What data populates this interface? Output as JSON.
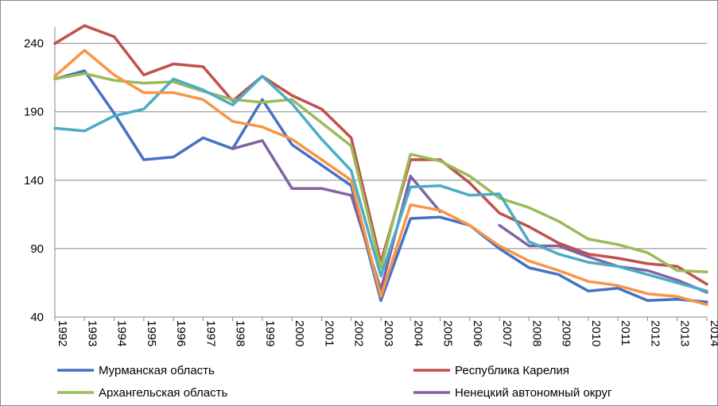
{
  "chart_data": {
    "type": "line",
    "title": "",
    "xlabel": "",
    "ylabel": "",
    "x": [
      "1992",
      "1993",
      "1994",
      "1995",
      "1996",
      "1997",
      "1998",
      "1999",
      "2000",
      "2001",
      "2002",
      "2003",
      "2004",
      "2005",
      "2006",
      "2007",
      "2008",
      "2009",
      "2010",
      "2011",
      "2012",
      "2013",
      "2014"
    ],
    "ylim": [
      40,
      250
    ],
    "yticks": [
      40,
      90,
      140,
      190,
      240
    ],
    "grid": true,
    "legend_position": "bottom",
    "series": [
      {
        "name": "Мурманская область",
        "color": "#4472c4",
        "values": [
          214,
          220,
          189,
          155,
          157,
          171,
          163,
          199,
          166,
          151,
          136,
          52,
          112,
          113,
          107,
          90,
          76,
          71,
          59,
          61,
          52,
          53,
          51
        ]
      },
      {
        "name": "Республика Карелия",
        "color": "#c0504d",
        "values": [
          240,
          253,
          245,
          217,
          225,
          223,
          198,
          216,
          202,
          192,
          171,
          80,
          155,
          155,
          138,
          116,
          106,
          94,
          86,
          83,
          79,
          77,
          64
        ]
      },
      {
        "name": "Архангельская область",
        "color": "#9bbb59",
        "values": [
          214,
          218,
          213,
          211,
          212,
          205,
          199,
          197,
          199,
          182,
          165,
          76,
          159,
          154,
          143,
          127,
          120,
          110,
          97,
          93,
          87,
          74,
          73
        ]
      },
      {
        "name": "Ненецкий автономный округ",
        "color": "#8064a2",
        "values": [
          null,
          null,
          null,
          null,
          null,
          null,
          163,
          169,
          134,
          134,
          129,
          60,
          143,
          117,
          null,
          107,
          92,
          92,
          84,
          77,
          74,
          67,
          58
        ]
      },
      {
        "name": "",
        "color": "#4bacc6",
        "values": [
          178,
          176,
          187,
          192,
          214,
          206,
          195,
          216,
          196,
          170,
          147,
          70,
          135,
          136,
          129,
          130,
          95,
          86,
          80,
          77,
          71,
          65,
          59
        ]
      },
      {
        "name": "",
        "color": "#f79646",
        "values": [
          216,
          235,
          217,
          204,
          204,
          199,
          183,
          179,
          170,
          155,
          140,
          55,
          122,
          118,
          107,
          92,
          81,
          74,
          66,
          63,
          57,
          55,
          49
        ]
      }
    ]
  }
}
